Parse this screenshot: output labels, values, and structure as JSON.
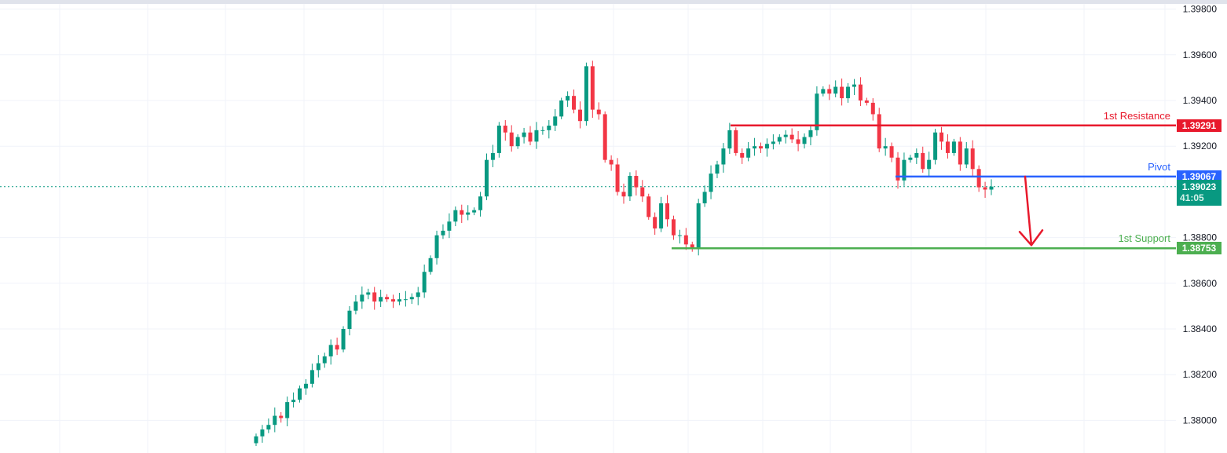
{
  "chart_data": {
    "type": "candlestick",
    "y_ticks": [
      "1.39800",
      "1.39600",
      "1.39400",
      "1.39200",
      "1.38800",
      "1.38600",
      "1.38400",
      "1.38200",
      "1.38000"
    ],
    "ylim": [
      1.379,
      1.3982
    ],
    "grid": true,
    "open_first": 1.379,
    "close": [
      1.3793,
      1.3796,
      1.3798,
      1.3802,
      1.3801,
      1.3808,
      1.3809,
      1.3814,
      1.3816,
      1.3822,
      1.3825,
      1.3828,
      1.3833,
      1.3831,
      1.384,
      1.3848,
      1.3852,
      1.3855,
      1.3856,
      1.3852,
      1.3854,
      1.3853,
      1.3852,
      1.3853,
      1.3853,
      1.3854,
      1.3856,
      1.3865,
      1.3871,
      1.3881,
      1.3883,
      1.3887,
      1.3892,
      1.389,
      1.3891,
      1.3892,
      1.3898,
      1.3914,
      1.3917,
      1.3929,
      1.3926,
      1.392,
      1.3924,
      1.3926,
      1.3922,
      1.3927,
      1.3927,
      1.3929,
      1.3933,
      1.394,
      1.3942,
      1.3936,
      1.3931,
      1.3955,
      1.3936,
      1.3934,
      1.3914,
      1.3912,
      1.39,
      1.3898,
      1.3907,
      1.3902,
      1.3898,
      1.3889,
      1.3884,
      1.3895,
      1.3888,
      1.3881,
      1.3881,
      1.3877,
      1.3875,
      1.3895,
      1.39,
      1.3908,
      1.3912,
      1.3919,
      1.3927,
      1.3917,
      1.3915,
      1.3919,
      1.392,
      1.3919,
      1.3921,
      1.3922,
      1.3924,
      1.3925,
      1.3923,
      1.3921,
      1.3924,
      1.3927,
      1.3943,
      1.3945,
      1.3943,
      1.3946,
      1.3941,
      1.3946,
      1.3947,
      1.394,
      1.3939,
      1.3934,
      1.3919,
      1.392,
      1.3915,
      1.3905,
      1.3914,
      1.3915,
      1.3917,
      1.391,
      1.3914,
      1.3926,
      1.3922,
      1.3917,
      1.3922,
      1.3912,
      1.3919,
      1.391,
      1.3902,
      1.3901,
      1.39023
    ],
    "levels": [
      {
        "name": "1st Resistance",
        "value": "1.39291",
        "price": 1.39291,
        "color": "#e8192c"
      },
      {
        "name": "Pivot",
        "value": "1.39067",
        "price": 1.39067,
        "color": "#2962ff"
      },
      {
        "name": "1st Support",
        "value": "1.38753",
        "price": 1.38753,
        "color": "#4caf50"
      }
    ],
    "last_price": {
      "value": "1.39023",
      "price": 1.39023,
      "countdown": "41:05",
      "color": "#089981"
    },
    "up_color": "#089981",
    "down_color": "#f23645",
    "projection_arrow": {
      "from": 1.39067,
      "to": 1.38753,
      "color": "#e8192c"
    }
  }
}
